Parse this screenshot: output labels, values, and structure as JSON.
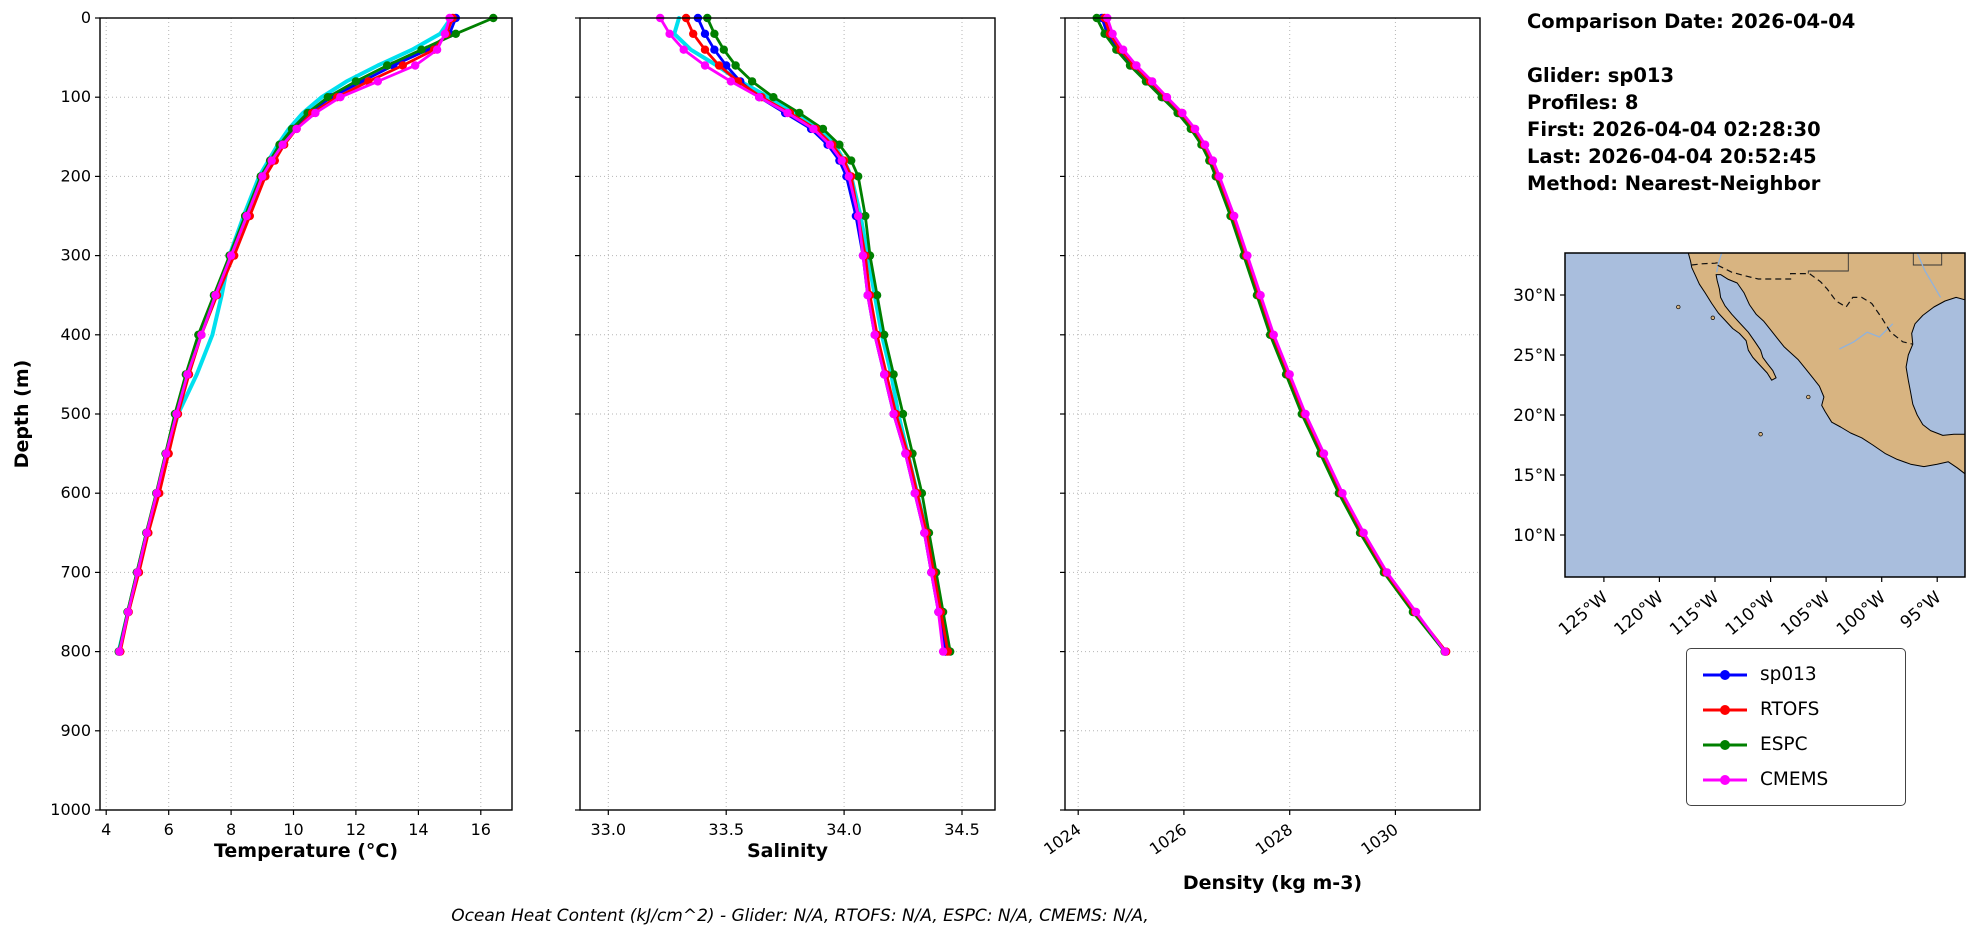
{
  "info": {
    "comparison_date": "Comparison Date: 2026-04-04",
    "glider": "Glider: sp013",
    "profiles": "Profiles: 8",
    "first": "First: 2026-04-04 02:28:30",
    "last": "Last: 2026-04-04 20:52:45",
    "method": "Method: Nearest-Neighbor"
  },
  "footer": {
    "ocean_heat_content": "Ocean Heat Content (kJ/cm^2) - Glider: N/A,  RTOFS: N/A,  ESPC: N/A,  CMEMS: N/A,"
  },
  "legend": {
    "entries": [
      {
        "label": "sp013",
        "color": "#0000ff"
      },
      {
        "label": "RTOFS",
        "color": "#ff0000"
      },
      {
        "label": "ESPC",
        "color": "#008000"
      },
      {
        "label": "CMEMS",
        "color": "#ff00ff"
      }
    ]
  },
  "chart_data": {
    "type": "line",
    "ylabel": "Depth (m)",
    "ylim": [
      1000,
      0
    ],
    "yticks": [
      0,
      100,
      200,
      300,
      400,
      500,
      600,
      700,
      800,
      900,
      1000
    ],
    "grid": "dotted",
    "depth_m": [
      0,
      20,
      40,
      60,
      80,
      100,
      120,
      140,
      160,
      180,
      200,
      250,
      300,
      350,
      400,
      450,
      500,
      550,
      600,
      650,
      700,
      750,
      800
    ],
    "panels": [
      {
        "id": "temperature",
        "xlabel": "Temperature (°C)",
        "xlim": [
          3.8,
          17.0
        ],
        "xticks": [
          4,
          6,
          8,
          10,
          12,
          14,
          16
        ],
        "xtick_labels": [
          "4",
          "6",
          "8",
          "10",
          "12",
          "14",
          "16"
        ],
        "rotate_xticks": false,
        "series": [
          {
            "name": "glider-profiles",
            "color": "#00e0ee",
            "marker": false,
            "width": 4,
            "values": [
              15.05,
              14.7,
              13.8,
              12.7,
              11.7,
              10.9,
              10.3,
              9.85,
              9.5,
              9.2,
              8.9,
              8.4,
              7.95,
              7.7,
              7.4,
              6.9,
              6.3,
              5.95,
              5.65,
              5.3,
              5.0,
              4.7,
              4.4
            ]
          },
          {
            "name": "sp013",
            "color": "#0000ff",
            "marker": true,
            "values": [
              15.2,
              15.0,
              14.3,
              13.2,
              12.2,
              11.2,
              10.5,
              10.0,
              9.6,
              9.3,
              9.0,
              8.5,
              8.0,
              7.5,
              7.0,
              6.6,
              6.25,
              5.95,
              5.65,
              5.3,
              5.0,
              4.7,
              4.42
            ]
          },
          {
            "name": "ESPC",
            "color": "#008000",
            "marker": true,
            "values": [
              16.4,
              15.2,
              14.1,
              13.0,
              12.0,
              11.1,
              10.45,
              9.95,
              9.55,
              9.25,
              8.95,
              8.45,
              7.95,
              7.45,
              6.95,
              6.55,
              6.2,
              5.9,
              5.6,
              5.28,
              4.98,
              4.68,
              4.4
            ]
          },
          {
            "name": "RTOFS",
            "color": "#ff0000",
            "marker": true,
            "values": [
              15.1,
              14.9,
              14.5,
              13.5,
              12.4,
              11.4,
              10.6,
              10.1,
              9.7,
              9.4,
              9.1,
              8.6,
              8.1,
              7.55,
              7.05,
              6.65,
              6.3,
              6.0,
              5.7,
              5.35,
              5.05,
              4.72,
              4.45
            ]
          },
          {
            "name": "CMEMS",
            "color": "#ff00ff",
            "marker": true,
            "values": [
              15.0,
              14.85,
              14.6,
              13.9,
              12.7,
              11.5,
              10.7,
              10.1,
              9.65,
              9.3,
              9.0,
              8.5,
              8.0,
              7.5,
              7.05,
              6.6,
              6.25,
              5.92,
              5.62,
              5.3,
              5.0,
              4.7,
              4.42
            ]
          }
        ]
      },
      {
        "id": "salinity",
        "xlabel": "Salinity",
        "xlim": [
          32.88,
          34.64
        ],
        "xticks": [
          33.0,
          33.5,
          34.0,
          34.5
        ],
        "xtick_labels": [
          "33.0",
          "33.5",
          "34.0",
          "34.5"
        ],
        "rotate_xticks": false,
        "series": [
          {
            "name": "glider-profiles",
            "color": "#00e0ee",
            "marker": false,
            "width": 4,
            "values": [
              33.3,
              33.28,
              33.35,
              33.46,
              33.56,
              33.68,
              33.8,
              33.9,
              33.96,
              34.0,
              34.03,
              34.07,
              34.1,
              34.13,
              34.16,
              34.2,
              34.23,
              34.27,
              34.31,
              34.35,
              34.38,
              34.41,
              34.43
            ]
          },
          {
            "name": "sp013",
            "color": "#0000ff",
            "marker": true,
            "values": [
              33.38,
              33.41,
              33.45,
              33.5,
              33.56,
              33.64,
              33.75,
              33.86,
              33.93,
              33.98,
              34.01,
              34.05,
              34.08,
              34.1,
              34.13,
              34.17,
              34.21,
              34.26,
              34.3,
              34.34,
              34.37,
              34.4,
              34.43
            ]
          },
          {
            "name": "ESPC",
            "color": "#008000",
            "marker": true,
            "values": [
              33.42,
              33.45,
              33.49,
              33.54,
              33.61,
              33.7,
              33.81,
              33.91,
              33.98,
              34.03,
              34.06,
              34.09,
              34.11,
              34.14,
              34.17,
              34.21,
              34.25,
              34.29,
              34.33,
              34.36,
              34.39,
              34.42,
              34.45
            ]
          },
          {
            "name": "RTOFS",
            "color": "#ff0000",
            "marker": true,
            "values": [
              33.33,
              33.36,
              33.41,
              33.47,
              33.55,
              33.65,
              33.77,
              33.88,
              33.95,
              34.0,
              34.03,
              34.06,
              34.09,
              34.11,
              34.14,
              34.18,
              34.22,
              34.27,
              34.31,
              34.35,
              34.38,
              34.41,
              34.44
            ]
          },
          {
            "name": "CMEMS",
            "color": "#ff00ff",
            "marker": true,
            "values": [
              33.22,
              33.26,
              33.32,
              33.41,
              33.52,
              33.64,
              33.76,
              33.87,
              33.94,
              33.99,
              34.02,
              34.06,
              34.08,
              34.1,
              34.13,
              34.17,
              34.21,
              34.26,
              34.3,
              34.34,
              34.37,
              34.4,
              34.42
            ]
          }
        ]
      },
      {
        "id": "density",
        "xlabel": "Density (kg m-3)",
        "xlim": [
          1023.75,
          1031.6
        ],
        "xticks": [
          1024,
          1026,
          1028,
          1030
        ],
        "xtick_labels": [
          "1024",
          "1026",
          "1028",
          "1030"
        ],
        "rotate_xticks": true,
        "series": [
          {
            "name": "sp013",
            "color": "#0000ff",
            "marker": true,
            "values": [
              1024.45,
              1024.55,
              1024.75,
              1025.0,
              1025.3,
              1025.6,
              1025.9,
              1026.15,
              1026.35,
              1026.5,
              1026.62,
              1026.9,
              1027.15,
              1027.4,
              1027.65,
              1027.95,
              1028.25,
              1028.6,
              1028.95,
              1029.35,
              1029.8,
              1030.35,
              1030.95
            ]
          },
          {
            "name": "ESPC",
            "color": "#008000",
            "marker": true,
            "values": [
              1024.35,
              1024.5,
              1024.72,
              1024.98,
              1025.28,
              1025.58,
              1025.88,
              1026.13,
              1026.33,
              1026.48,
              1026.6,
              1026.88,
              1027.13,
              1027.38,
              1027.63,
              1027.93,
              1028.23,
              1028.58,
              1028.93,
              1029.33,
              1029.78,
              1030.33,
              1030.93
            ]
          },
          {
            "name": "RTOFS",
            "color": "#ff0000",
            "marker": true,
            "values": [
              1024.5,
              1024.6,
              1024.8,
              1025.06,
              1025.36,
              1025.66,
              1025.95,
              1026.19,
              1026.38,
              1026.53,
              1026.65,
              1026.93,
              1027.18,
              1027.43,
              1027.68,
              1027.98,
              1028.28,
              1028.63,
              1028.98,
              1029.38,
              1029.82,
              1030.37,
              1030.96
            ]
          },
          {
            "name": "CMEMS",
            "color": "#ff00ff",
            "marker": true,
            "values": [
              1024.55,
              1024.65,
              1024.85,
              1025.1,
              1025.4,
              1025.68,
              1025.97,
              1026.21,
              1026.4,
              1026.55,
              1026.67,
              1026.95,
              1027.2,
              1027.45,
              1027.7,
              1028.0,
              1028.3,
              1028.65,
              1029.0,
              1029.4,
              1029.84,
              1030.39,
              1030.94
            ]
          }
        ]
      }
    ]
  },
  "map": {
    "ocean_color": "#a9bedd",
    "land_color": "#d8b481",
    "extent": {
      "lon_min": -128.5,
      "lon_max": -92.5,
      "lat_min": 6.5,
      "lat_max": 33.5
    },
    "lat_ticks": [
      {
        "v": 10,
        "label": "10°N"
      },
      {
        "v": 15,
        "label": "15°N"
      },
      {
        "v": 20,
        "label": "20°N"
      },
      {
        "v": 25,
        "label": "25°N"
      },
      {
        "v": 30,
        "label": "30°N"
      }
    ],
    "lon_ticks": [
      {
        "v": -125,
        "label": "125°W"
      },
      {
        "v": -120,
        "label": "120°W"
      },
      {
        "v": -115,
        "label": "115°W"
      },
      {
        "v": -110,
        "label": "110°W"
      },
      {
        "v": -105,
        "label": "105°W"
      },
      {
        "v": -100,
        "label": "100°W"
      },
      {
        "v": -95,
        "label": "95°W"
      }
    ],
    "land_polygon": [
      [
        -117.4,
        33.5
      ],
      [
        -117.2,
        32.8
      ],
      [
        -117.1,
        32.3
      ],
      [
        -116.8,
        31.7
      ],
      [
        -116.4,
        30.9
      ],
      [
        -115.9,
        30.2
      ],
      [
        -115.3,
        29.3
      ],
      [
        -114.7,
        28.5
      ],
      [
        -114.0,
        27.8
      ],
      [
        -113.4,
        27.2
      ],
      [
        -112.8,
        26.8
      ],
      [
        -112.2,
        26.2
      ],
      [
        -112.0,
        25.4
      ],
      [
        -111.6,
        24.8
      ],
      [
        -111.0,
        24.2
      ],
      [
        -110.3,
        23.5
      ],
      [
        -109.9,
        22.9
      ],
      [
        -109.5,
        23.1
      ],
      [
        -109.8,
        23.7
      ],
      [
        -110.3,
        24.3
      ],
      [
        -110.7,
        24.8
      ],
      [
        -110.9,
        25.4
      ],
      [
        -111.4,
        26.1
      ],
      [
        -112.0,
        26.9
      ],
      [
        -112.8,
        27.7
      ],
      [
        -113.5,
        28.4
      ],
      [
        -114.1,
        29.1
      ],
      [
        -114.5,
        29.8
      ],
      [
        -114.6,
        30.5
      ],
      [
        -114.8,
        31.2
      ],
      [
        -114.9,
        31.7
      ],
      [
        -114.5,
        31.7
      ],
      [
        -113.8,
        31.3
      ],
      [
        -113.0,
        31.0
      ],
      [
        -112.4,
        30.2
      ],
      [
        -111.9,
        29.2
      ],
      [
        -111.3,
        28.4
      ],
      [
        -110.6,
        27.8
      ],
      [
        -110.0,
        27.1
      ],
      [
        -109.4,
        26.4
      ],
      [
        -108.8,
        25.7
      ],
      [
        -108.1,
        25.1
      ],
      [
        -107.5,
        24.6
      ],
      [
        -106.8,
        23.8
      ],
      [
        -106.2,
        23.1
      ],
      [
        -105.6,
        22.4
      ],
      [
        -105.2,
        21.5
      ],
      [
        -105.4,
        20.8
      ],
      [
        -105.1,
        20.3
      ],
      [
        -104.5,
        19.4
      ],
      [
        -103.7,
        19.0
      ],
      [
        -102.8,
        18.5
      ],
      [
        -101.8,
        18.1
      ],
      [
        -100.8,
        17.5
      ],
      [
        -99.7,
        16.8
      ],
      [
        -98.6,
        16.3
      ],
      [
        -97.4,
        15.9
      ],
      [
        -96.2,
        15.7
      ],
      [
        -95.0,
        15.9
      ],
      [
        -94.0,
        16.1
      ],
      [
        -93.2,
        15.6
      ],
      [
        -92.5,
        15.1
      ],
      [
        -92.5,
        18.4
      ],
      [
        -93.5,
        18.4
      ],
      [
        -94.5,
        18.3
      ],
      [
        -95.6,
        18.7
      ],
      [
        -96.3,
        19.2
      ],
      [
        -96.8,
        20.0
      ],
      [
        -97.2,
        20.9
      ],
      [
        -97.4,
        21.9
      ],
      [
        -97.6,
        22.9
      ],
      [
        -97.8,
        24.0
      ],
      [
        -97.6,
        25.0
      ],
      [
        -97.2,
        25.9
      ],
      [
        -97.3,
        26.8
      ],
      [
        -97.0,
        27.6
      ],
      [
        -96.3,
        28.3
      ],
      [
        -95.3,
        29.0
      ],
      [
        -94.3,
        29.5
      ],
      [
        -93.3,
        29.8
      ],
      [
        -92.5,
        29.6
      ],
      [
        -92.5,
        33.5
      ]
    ],
    "border_dashed": [
      [
        -117.1,
        32.5
      ],
      [
        -116.2,
        32.6
      ],
      [
        -115.0,
        32.65
      ],
      [
        -114.7,
        32.7
      ],
      [
        -114.8,
        32.5
      ],
      [
        -113.5,
        31.9
      ],
      [
        -112.3,
        31.6
      ],
      [
        -111.1,
        31.33
      ],
      [
        -108.2,
        31.33
      ],
      [
        -108.2,
        31.78
      ],
      [
        -106.5,
        31.78
      ],
      [
        -105.5,
        31.1
      ],
      [
        -104.9,
        30.5
      ],
      [
        -104.1,
        29.5
      ],
      [
        -103.2,
        29.0
      ],
      [
        -102.6,
        29.8
      ],
      [
        -101.8,
        29.8
      ],
      [
        -100.9,
        29.3
      ],
      [
        -100.0,
        28.1
      ],
      [
        -99.2,
        26.9
      ],
      [
        -98.1,
        26.1
      ],
      [
        -97.2,
        25.9
      ]
    ],
    "state_lines": [
      [
        [
          -103.0,
          33.5
        ],
        [
          -103.0,
          32.0
        ],
        [
          -106.6,
          32.0
        ],
        [
          -106.6,
          31.78
        ]
      ],
      [
        [
          -97.15,
          33.5
        ],
        [
          -97.15,
          32.5
        ],
        [
          -94.6,
          32.5
        ],
        [
          -94.6,
          33.5
        ]
      ]
    ],
    "rivers": [
      [
        [
          -114.4,
          33.5
        ],
        [
          -114.6,
          32.9
        ],
        [
          -114.75,
          32.4
        ],
        [
          -114.85,
          31.9
        ]
      ],
      [
        [
          -96.8,
          33.5
        ],
        [
          -96.1,
          32.0
        ],
        [
          -95.2,
          30.6
        ],
        [
          -94.7,
          29.8
        ]
      ],
      [
        [
          -99.0,
          27.6
        ],
        [
          -100.2,
          26.5
        ],
        [
          -101.3,
          26.9
        ],
        [
          -102.5,
          26.1
        ],
        [
          -103.8,
          25.5
        ]
      ]
    ],
    "islands": [
      [
        -118.3,
        29.0
      ],
      [
        -115.2,
        28.1
      ],
      [
        -106.6,
        21.5
      ],
      [
        -110.9,
        18.4
      ]
    ]
  }
}
